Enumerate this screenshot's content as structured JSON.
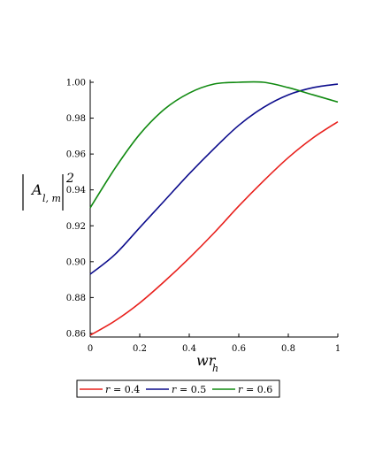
{
  "chart_data": {
    "type": "line",
    "xlabel": "wr",
    "xlabel_sub": "h",
    "ylabel_main": "A",
    "ylabel_sub": "l, m",
    "ylabel_power": "2",
    "xlim": [
      0,
      1
    ],
    "ylim": [
      0.858,
      1.0
    ],
    "x_ticks": [
      "0",
      "0.2",
      "0.4",
      "0.6",
      "0.8",
      "1"
    ],
    "y_ticks": [
      "0.86",
      "0.88",
      "0.90",
      "0.92",
      "0.94",
      "0.96",
      "0.98",
      "1.00"
    ],
    "grid": false,
    "legend_position": "bottom",
    "series": [
      {
        "name": "r = 0.4",
        "legend_var": "r",
        "legend_value": "= 0.4",
        "color": "#e8201c",
        "x": [
          0,
          0.1,
          0.2,
          0.3,
          0.4,
          0.5,
          0.6,
          0.7,
          0.8,
          0.9,
          1.0
        ],
        "y": [
          0.859,
          0.867,
          0.877,
          0.889,
          0.902,
          0.916,
          0.931,
          0.945,
          0.958,
          0.969,
          0.978
        ]
      },
      {
        "name": "r = 0.5",
        "legend_var": "r",
        "legend_value": "= 0.5",
        "color": "#0c0c8c",
        "x": [
          0,
          0.1,
          0.2,
          0.3,
          0.4,
          0.5,
          0.6,
          0.7,
          0.8,
          0.9,
          1.0
        ],
        "y": [
          0.893,
          0.904,
          0.919,
          0.934,
          0.949,
          0.963,
          0.976,
          0.986,
          0.993,
          0.997,
          0.999
        ]
      },
      {
        "name": "r = 0.6",
        "legend_var": "r",
        "legend_value": "= 0.6",
        "color": "#118a11",
        "x": [
          0,
          0.1,
          0.2,
          0.3,
          0.4,
          0.5,
          0.6,
          0.7,
          0.8,
          0.9,
          1.0
        ],
        "y": [
          0.93,
          0.952,
          0.971,
          0.985,
          0.994,
          0.999,
          1.0,
          1.0,
          0.997,
          0.993,
          0.989
        ]
      }
    ]
  }
}
